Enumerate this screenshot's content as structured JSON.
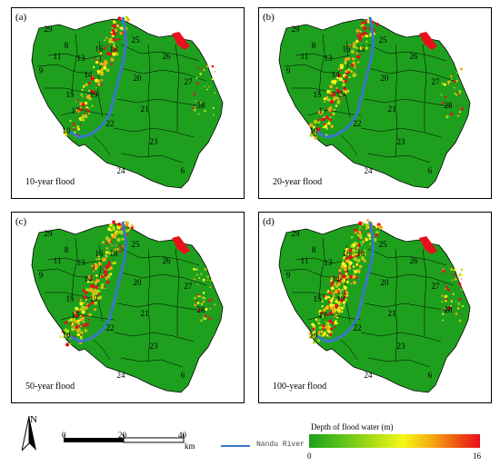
{
  "panels": [
    {
      "letter": "(a)",
      "caption": "10-year flood",
      "id": "a"
    },
    {
      "letter": "(b)",
      "caption": "20-year flood",
      "id": "b"
    },
    {
      "letter": "(c)",
      "caption": "50-year flood",
      "id": "c"
    },
    {
      "letter": "(d)",
      "caption": "100-year flood",
      "id": "d"
    }
  ],
  "district_numbers": [
    "6",
    "8",
    "9",
    "11",
    "13",
    "14",
    "15",
    "16",
    "17",
    "18",
    "19",
    "20",
    "21",
    "22",
    "23",
    "24",
    "25",
    "26",
    "27",
    "28",
    "29"
  ],
  "legend": {
    "north": "N",
    "scale_ticks": [
      "0",
      "20",
      "40"
    ],
    "scale_unit": "km",
    "river_label": "Nandu River",
    "depth_title": "Depth of flood water (m)",
    "depth_min": "0",
    "depth_max": "16"
  },
  "colors": {
    "land": "#1ea01e",
    "river": "#3a78c9",
    "flood_low": "#f6f615",
    "flood_mid": "#f5a813",
    "flood_high": "#e8101c"
  }
}
